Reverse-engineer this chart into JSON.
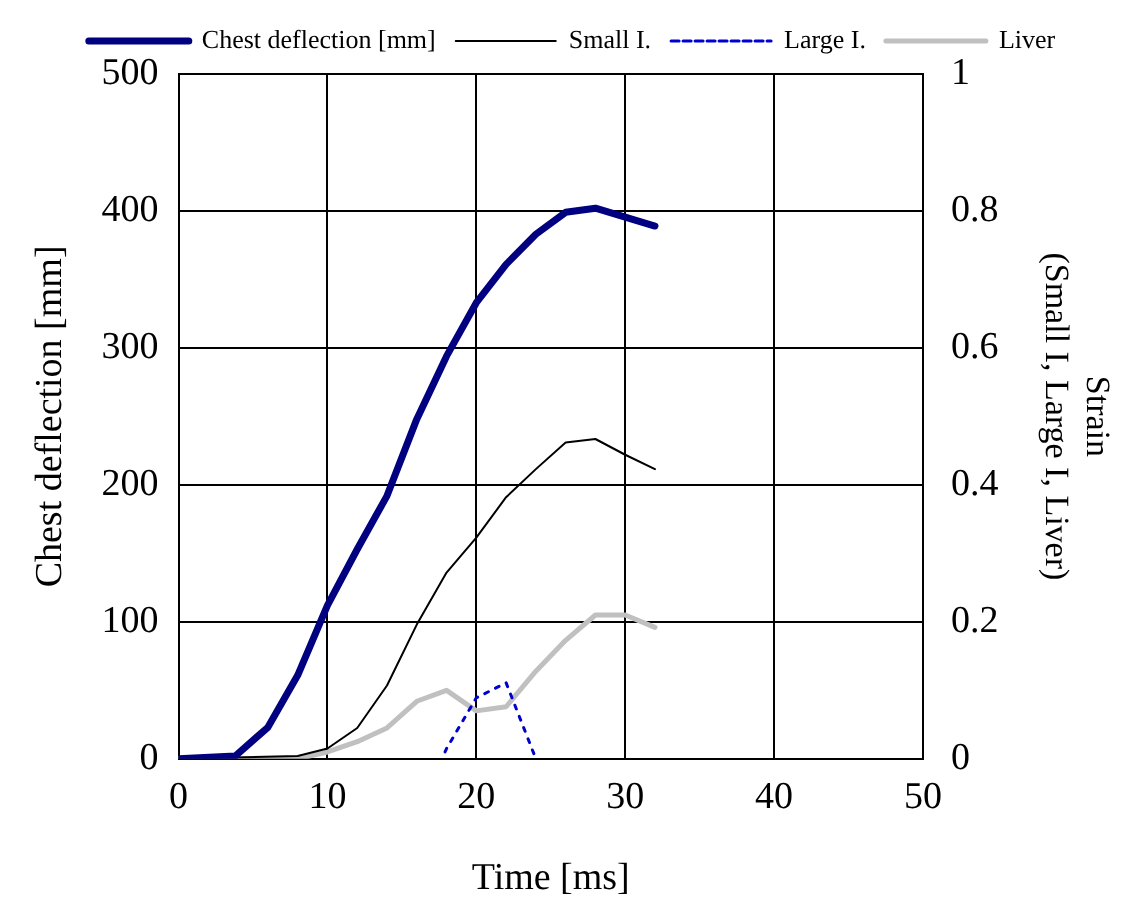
{
  "chart_data": {
    "type": "line",
    "xlabel": "Time [ms]",
    "ylabel": "Chest deflection [mm]",
    "y2label": "Strain\n(Small I, Large I, Liver)",
    "xlim": [
      0,
      50
    ],
    "xticks": [
      0,
      10,
      20,
      30,
      40,
      50
    ],
    "ylim": [
      0,
      500
    ],
    "yticks": [
      0,
      100,
      200,
      300,
      400,
      500
    ],
    "y2lim": [
      0,
      1
    ],
    "y2ticks": [
      0,
      0.2,
      0.4,
      0.6,
      0.8,
      1
    ],
    "grid": true,
    "legend": "top",
    "marker": "none",
    "series": [
      {
        "name": "Chest deflection [mm]",
        "color": "#000080",
        "line_style": "solid",
        "x": [
          0,
          3.8,
          6,
          8,
          10,
          12,
          14,
          16,
          18,
          20,
          22,
          24,
          26,
          28,
          32
        ],
        "values": [
          0,
          2,
          23,
          61,
          112,
          153,
          192,
          248,
          294,
          333,
          361,
          383,
          399,
          402,
          389
        ]
      },
      {
        "name": "Small I.",
        "color": "#000000",
        "line_style": "solid",
        "axis": "y2",
        "x": [
          0,
          8,
          10,
          12,
          14,
          16,
          18,
          20,
          22,
          24,
          26,
          28,
          30,
          32
        ],
        "values": [
          0,
          0.004,
          0.015,
          0.045,
          0.107,
          0.196,
          0.272,
          0.323,
          0.382,
          0.423,
          0.462,
          0.467,
          0.444,
          0.423
        ]
      },
      {
        "name": "Large I.",
        "color": "#0000cc",
        "line_style": "dotted",
        "axis": "y2",
        "x": [
          17.9,
          18,
          20,
          22,
          24
        ],
        "values": [
          0.01,
          0.015,
          0.089,
          0.111,
          0
        ]
      },
      {
        "name": "Liver",
        "color": "#c0c0c0",
        "line_style": "solid",
        "axis": "y2",
        "x": [
          0,
          8,
          10,
          12,
          14,
          16,
          18,
          20,
          22,
          24,
          26,
          28,
          30,
          32
        ],
        "values": [
          0,
          0,
          0.01,
          0.025,
          0.045,
          0.084,
          0.1,
          0.07,
          0.076,
          0.128,
          0.173,
          0.21,
          0.21,
          0.192
        ]
      }
    ]
  }
}
